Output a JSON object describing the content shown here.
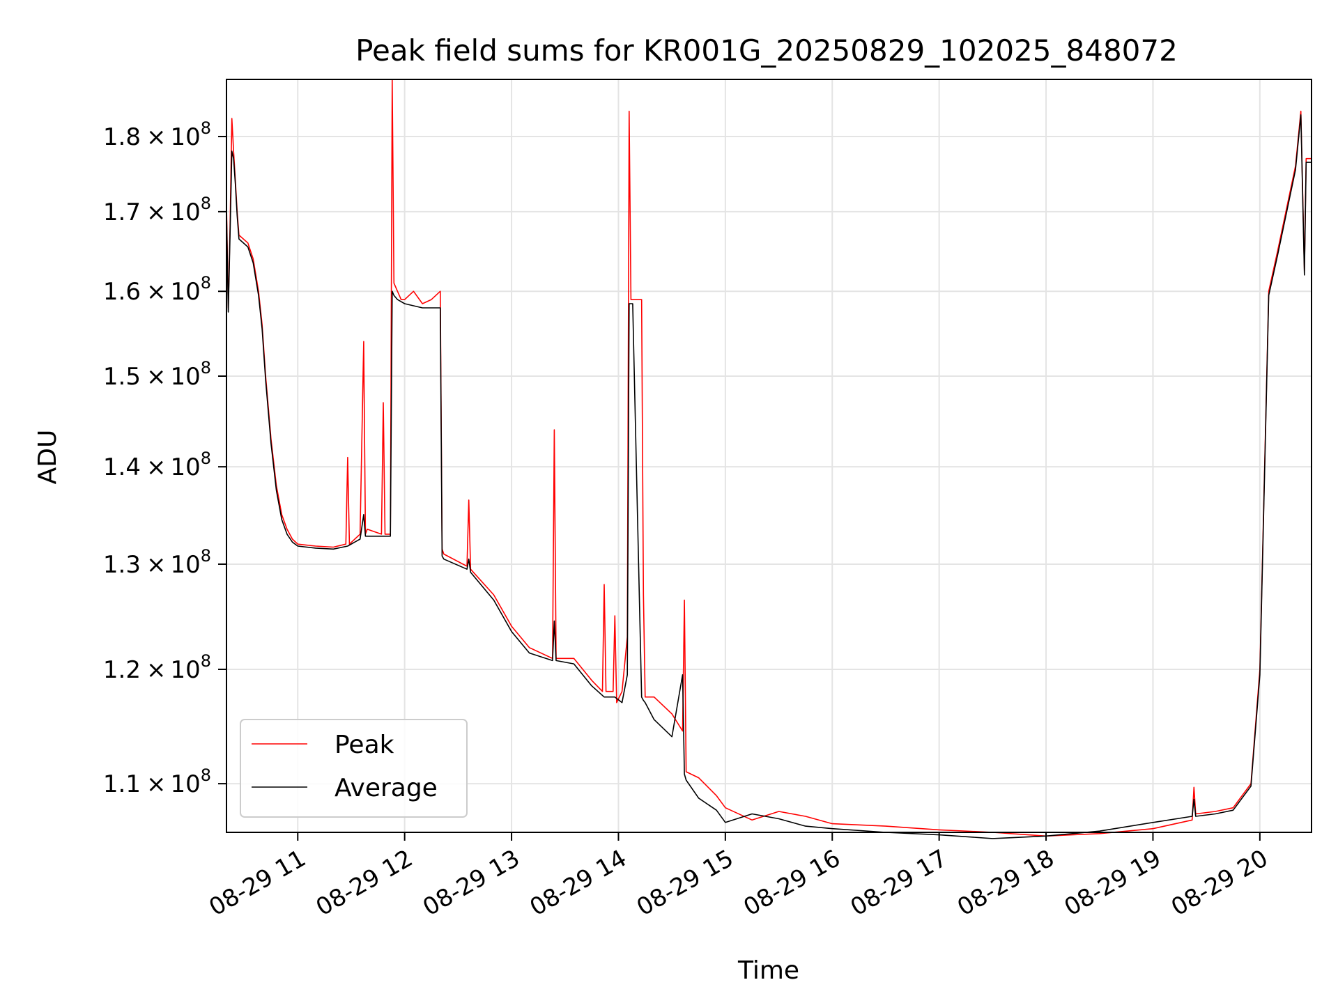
{
  "chart_data": {
    "type": "line",
    "title": "Peak field sums for KR001G_20250829_102025_848072",
    "xlabel": "Time",
    "ylabel": "ADU",
    "y_scale": "log",
    "xlim": [
      "2025-08-29 10:20",
      "2025-08-29 20:29"
    ],
    "ylim": [
      106000000,
      188000000
    ],
    "grid": true,
    "legend_position": "lower-left",
    "x_ticks": [
      {
        "value": "2025-08-29 11:00",
        "label": "08-29 11"
      },
      {
        "value": "2025-08-29 12:00",
        "label": "08-29 12"
      },
      {
        "value": "2025-08-29 13:00",
        "label": "08-29 13"
      },
      {
        "value": "2025-08-29 14:00",
        "label": "08-29 14"
      },
      {
        "value": "2025-08-29 15:00",
        "label": "08-29 15"
      },
      {
        "value": "2025-08-29 16:00",
        "label": "08-29 16"
      },
      {
        "value": "2025-08-29 17:00",
        "label": "08-29 17"
      },
      {
        "value": "2025-08-29 18:00",
        "label": "08-29 18"
      },
      {
        "value": "2025-08-29 19:00",
        "label": "08-29 19"
      },
      {
        "value": "2025-08-29 20:00",
        "label": "08-29 20"
      }
    ],
    "y_ticks": [
      {
        "value": 110000000,
        "mantissa": "1.1",
        "exponent": "8"
      },
      {
        "value": 120000000,
        "mantissa": "1.2",
        "exponent": "8"
      },
      {
        "value": 130000000,
        "mantissa": "1.3",
        "exponent": "8"
      },
      {
        "value": 140000000,
        "mantissa": "1.4",
        "exponent": "8"
      },
      {
        "value": 150000000,
        "mantissa": "1.5",
        "exponent": "8"
      },
      {
        "value": 160000000,
        "mantissa": "1.6",
        "exponent": "8"
      },
      {
        "value": 170000000,
        "mantissa": "1.7",
        "exponent": "8"
      },
      {
        "value": 180000000,
        "mantissa": "1.8",
        "exponent": "8"
      }
    ],
    "y_tick_times_symbol": "×",
    "y_tick_base": "10",
    "series": [
      {
        "name": "Peak",
        "color": "#ff0000",
        "x": [
          "2025-08-29 10:20",
          "2025-08-29 10:21",
          "2025-08-29 10:22",
          "2025-08-29 10:23",
          "2025-08-29 10:24",
          "2025-08-29 10:25",
          "2025-08-29 10:26",
          "2025-08-29 10:27",
          "2025-08-29 10:32",
          "2025-08-29 10:35",
          "2025-08-29 10:38",
          "2025-08-29 10:40",
          "2025-08-29 10:42",
          "2025-08-29 10:45",
          "2025-08-29 10:48",
          "2025-08-29 10:51",
          "2025-08-29 10:54",
          "2025-08-29 10:57",
          "2025-08-29 11:00",
          "2025-08-29 11:10",
          "2025-08-29 11:20",
          "2025-08-29 11:27",
          "2025-08-29 11:28",
          "2025-08-29 11:29",
          "2025-08-29 11:35",
          "2025-08-29 11:37",
          "2025-08-29 11:38",
          "2025-08-29 11:39",
          "2025-08-29 11:47",
          "2025-08-29 11:48",
          "2025-08-29 11:49",
          "2025-08-29 11:52",
          "2025-08-29 11:53",
          "2025-08-29 11:54",
          "2025-08-29 11:56",
          "2025-08-29 11:57",
          "2025-08-29 11:58",
          "2025-08-29 11:59",
          "2025-08-29 12:00",
          "2025-08-29 12:05",
          "2025-08-29 12:10",
          "2025-08-29 12:15",
          "2025-08-29 12:20",
          "2025-08-29 12:21",
          "2025-08-29 12:22",
          "2025-08-29 12:35",
          "2025-08-29 12:36",
          "2025-08-29 12:37",
          "2025-08-29 12:50",
          "2025-08-29 13:00",
          "2025-08-29 13:10",
          "2025-08-29 13:23",
          "2025-08-29 13:24",
          "2025-08-29 13:25",
          "2025-08-29 13:35",
          "2025-08-29 13:45",
          "2025-08-29 13:51",
          "2025-08-29 13:52",
          "2025-08-29 13:53",
          "2025-08-29 13:57",
          "2025-08-29 13:58",
          "2025-08-29 13:59",
          "2025-08-29 14:02",
          "2025-08-29 14:05",
          "2025-08-29 14:06",
          "2025-08-29 14:07",
          "2025-08-29 14:08",
          "2025-08-29 14:13",
          "2025-08-29 14:14",
          "2025-08-29 14:15",
          "2025-08-29 14:20",
          "2025-08-29 14:30",
          "2025-08-29 14:36",
          "2025-08-29 14:37",
          "2025-08-29 14:38",
          "2025-08-29 14:45",
          "2025-08-29 14:55",
          "2025-08-29 15:00",
          "2025-08-29 15:15",
          "2025-08-29 15:30",
          "2025-08-29 15:45",
          "2025-08-29 16:00",
          "2025-08-29 16:30",
          "2025-08-29 17:00",
          "2025-08-29 17:30",
          "2025-08-29 18:00",
          "2025-08-29 18:30",
          "2025-08-29 19:00",
          "2025-08-29 19:22",
          "2025-08-29 19:23",
          "2025-08-29 19:24",
          "2025-08-29 19:35",
          "2025-08-29 19:45",
          "2025-08-29 19:55",
          "2025-08-29 20:00",
          "2025-08-29 20:05",
          "2025-08-29 20:10",
          "2025-08-29 20:20",
          "2025-08-29 20:23",
          "2025-08-29 20:25",
          "2025-08-29 20:26",
          "2025-08-29 20:29"
        ],
        "y": [
          171000000,
          158000000,
          168000000,
          182500000,
          178000000,
          174000000,
          170000000,
          167000000,
          166000000,
          164000000,
          160000000,
          156000000,
          150000000,
          143000000,
          138000000,
          135000000,
          133500000,
          132500000,
          132000000,
          131800000,
          131700000,
          132000000,
          141000000,
          132000000,
          133000000,
          154000000,
          133000000,
          133500000,
          133000000,
          147000000,
          133000000,
          133000000,
          188000000,
          161000000,
          160000000,
          159500000,
          159000000,
          159000000,
          159000000,
          160000000,
          158500000,
          159000000,
          160000000,
          131500000,
          131000000,
          129800000,
          136500000,
          129500000,
          127000000,
          124000000,
          122000000,
          121000000,
          144000000,
          121000000,
          121000000,
          119000000,
          118000000,
          128000000,
          118000000,
          118000000,
          125000000,
          117000000,
          118000000,
          123000000,
          183500000,
          159000000,
          159000000,
          159000000,
          127000000,
          117500000,
          117500000,
          116000000,
          114500000,
          126500000,
          111000000,
          110500000,
          109000000,
          108000000,
          107000000,
          107700000,
          107300000,
          106700000,
          106500000,
          106200000,
          106000000,
          105700000,
          105900000,
          106300000,
          107000000,
          109700000,
          107500000,
          107700000,
          108000000,
          110000000,
          120000000,
          160000000,
          165000000,
          176000000,
          183500000,
          162500000,
          177000000,
          177000000
        ]
      },
      {
        "name": "Average",
        "color": "#000000",
        "x": [
          "2025-08-29 10:20",
          "2025-08-29 10:21",
          "2025-08-29 10:22",
          "2025-08-29 10:23",
          "2025-08-29 10:24",
          "2025-08-29 10:25",
          "2025-08-29 10:26",
          "2025-08-29 10:27",
          "2025-08-29 10:32",
          "2025-08-29 10:35",
          "2025-08-29 10:38",
          "2025-08-29 10:40",
          "2025-08-29 10:42",
          "2025-08-29 10:45",
          "2025-08-29 10:48",
          "2025-08-29 10:51",
          "2025-08-29 10:54",
          "2025-08-29 10:57",
          "2025-08-29 11:00",
          "2025-08-29 11:10",
          "2025-08-29 11:20",
          "2025-08-29 11:28",
          "2025-08-29 11:35",
          "2025-08-29 11:37",
          "2025-08-29 11:38",
          "2025-08-29 11:47",
          "2025-08-29 11:52",
          "2025-08-29 11:53",
          "2025-08-29 11:54",
          "2025-08-29 11:56",
          "2025-08-29 12:00",
          "2025-08-29 12:10",
          "2025-08-29 12:20",
          "2025-08-29 12:21",
          "2025-08-29 12:22",
          "2025-08-29 12:35",
          "2025-08-29 12:36",
          "2025-08-29 12:37",
          "2025-08-29 12:50",
          "2025-08-29 13:00",
          "2025-08-29 13:10",
          "2025-08-29 13:23",
          "2025-08-29 13:24",
          "2025-08-29 13:25",
          "2025-08-29 13:35",
          "2025-08-29 13:45",
          "2025-08-29 13:52",
          "2025-08-29 13:58",
          "2025-08-29 14:02",
          "2025-08-29 14:05",
          "2025-08-29 14:06",
          "2025-08-29 14:07",
          "2025-08-29 14:08",
          "2025-08-29 14:13",
          "2025-08-29 14:14",
          "2025-08-29 14:15",
          "2025-08-29 14:20",
          "2025-08-29 14:30",
          "2025-08-29 14:36",
          "2025-08-29 14:37",
          "2025-08-29 14:38",
          "2025-08-29 14:45",
          "2025-08-29 14:55",
          "2025-08-29 15:00",
          "2025-08-29 15:15",
          "2025-08-29 15:30",
          "2025-08-29 15:45",
          "2025-08-29 16:00",
          "2025-08-29 16:30",
          "2025-08-29 17:00",
          "2025-08-29 17:30",
          "2025-08-29 18:00",
          "2025-08-29 18:30",
          "2025-08-29 19:00",
          "2025-08-29 19:22",
          "2025-08-29 19:23",
          "2025-08-29 19:24",
          "2025-08-29 19:35",
          "2025-08-29 19:45",
          "2025-08-29 19:55",
          "2025-08-29 20:00",
          "2025-08-29 20:05",
          "2025-08-29 20:10",
          "2025-08-29 20:20",
          "2025-08-29 20:23",
          "2025-08-29 20:25",
          "2025-08-29 20:26",
          "2025-08-29 20:29"
        ],
        "y": [
          170000000,
          157500000,
          167000000,
          178000000,
          177000000,
          173500000,
          169500000,
          166500000,
          165500000,
          163500000,
          159500000,
          155500000,
          149500000,
          142500000,
          137500000,
          134500000,
          133000000,
          132200000,
          131800000,
          131600000,
          131500000,
          131800000,
          132500000,
          135000000,
          132800000,
          132800000,
          132800000,
          160000000,
          159500000,
          159000000,
          158500000,
          158000000,
          158000000,
          130800000,
          130500000,
          129500000,
          130500000,
          129200000,
          126500000,
          123500000,
          121500000,
          120800000,
          124500000,
          120800000,
          120500000,
          118500000,
          117500000,
          117500000,
          117000000,
          119500000,
          158500000,
          158500000,
          158500000,
          117500000,
          117200000,
          117000000,
          115500000,
          114000000,
          119500000,
          110800000,
          110300000,
          108800000,
          107800000,
          106800000,
          107500000,
          107100000,
          106500000,
          106300000,
          106000000,
          105800000,
          105500000,
          105700000,
          106100000,
          106800000,
          107300000,
          108700000,
          107300000,
          107500000,
          107800000,
          109800000,
          119500000,
          159500000,
          164500000,
          175500000,
          183000000,
          162000000,
          176500000,
          176500000
        ]
      }
    ]
  }
}
